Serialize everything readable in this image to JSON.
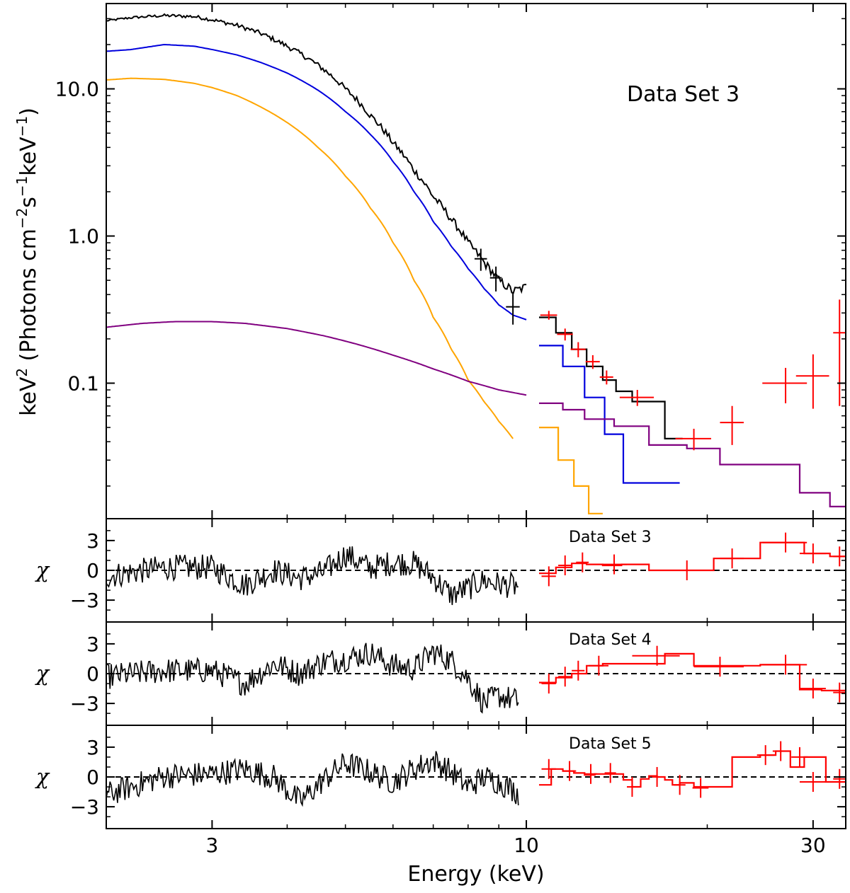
{
  "chart_data": {
    "type": "line",
    "xlabel": "Energy (keV)",
    "xscale": "log",
    "xlim": [
      2.0,
      34.0
    ],
    "xticks": [
      {
        "value": 3,
        "label": "3"
      },
      {
        "value": 10,
        "label": "10"
      },
      {
        "value": 30,
        "label": "30"
      }
    ],
    "shared_x": true,
    "panels": [
      {
        "id": "spectrum",
        "ylabel_pre": "keV",
        "ylabel_sup": "2",
        "ylabel_main": " (Photons cm",
        "ylabel_sup2": "−2",
        "ylabel_mid": "s",
        "ylabel_sup3": "−1",
        "ylabel_mid2": "keV",
        "ylabel_sup4": "−1",
        "ylabel_end": ")",
        "yscale": "log",
        "ylim": [
          0.012,
          38
        ],
        "yticks": [
          {
            "value": 0.1,
            "label": "0.1"
          },
          {
            "value": 1.0,
            "label": "1.0"
          },
          {
            "value": 10.0,
            "label": "10.0"
          }
        ],
        "annotation": "Data Set 3",
        "series": [
          {
            "color": "#000000",
            "kind": "data-steps",
            "x": [
              2.0,
              2.2,
              2.5,
              2.8,
              3.0,
              3.3,
              3.6,
              4.0,
              4.5,
              5.0,
              5.5,
              6.0,
              6.5,
              7.0,
              7.5,
              8.0,
              8.5,
              9.0,
              9.5,
              10.0
            ],
            "y": [
              29,
              30.5,
              31.5,
              31,
              29.5,
              27,
              24,
              19.5,
              14.5,
              10.0,
              6.6,
              4.3,
              2.8,
              1.85,
              1.3,
              0.9,
              0.66,
              0.5,
              0.42,
              0.45
            ]
          },
          {
            "color": "#000000",
            "kind": "model-steps",
            "x": [
              10.5,
              11.2,
              11.9,
              12.6,
              13.4,
              14.1,
              15.0,
              17.0,
              18.2
            ],
            "y": [
              0.28,
              0.22,
              0.17,
              0.13,
              0.105,
              0.088,
              0.075,
              0.042,
              0.042
            ]
          },
          {
            "color": "#0000dd",
            "kind": "model",
            "x": [
              2.0,
              2.2,
              2.5,
              2.8,
              3.0,
              3.3,
              3.6,
              4.0,
              4.5,
              5.0,
              5.5,
              6.0,
              6.5,
              7.0,
              7.5,
              8.0,
              8.5,
              9.0,
              9.5,
              10.0
            ],
            "y": [
              18,
              18.5,
              20,
              19.5,
              18.5,
              17,
              15.2,
              12.8,
              9.8,
              7.0,
              4.9,
              3.2,
              2.0,
              1.25,
              0.85,
              0.6,
              0.44,
              0.34,
              0.29,
              0.27
            ]
          },
          {
            "color": "#0000dd",
            "kind": "model-steps",
            "x": [
              10.5,
              11.5,
              12.5,
              13.5,
              14.5,
              16.0,
              18.0
            ],
            "y": [
              0.18,
              0.13,
              0.08,
              0.045,
              0.021,
              0.021,
              0.011
            ]
          },
          {
            "color": "#ffa500",
            "kind": "model",
            "x": [
              2.0,
              2.2,
              2.5,
              2.8,
              3.0,
              3.3,
              3.6,
              4.0,
              4.5,
              5.0,
              5.5,
              6.0,
              6.5,
              7.0,
              7.5,
              8.0,
              8.5,
              9.0,
              9.5
            ],
            "y": [
              11.5,
              11.8,
              11.6,
              10.9,
              10.2,
              9.0,
              7.6,
              5.9,
              4.0,
              2.55,
              1.55,
              0.9,
              0.5,
              0.28,
              0.17,
              0.105,
              0.075,
              0.055,
              0.042
            ]
          },
          {
            "color": "#ffa500",
            "kind": "model-steps",
            "x": [
              10.5,
              11.3,
              12.0,
              12.7,
              13.4
            ],
            "y": [
              0.05,
              0.03,
              0.02,
              0.013,
              0.011
            ]
          },
          {
            "color": "#800080",
            "kind": "model",
            "x": [
              2.0,
              2.3,
              2.6,
              3.0,
              3.4,
              4.0,
              4.6,
              5.2,
              6.0,
              7.0,
              8.0,
              9.0,
              10.0
            ],
            "y": [
              0.24,
              0.255,
              0.262,
              0.262,
              0.255,
              0.235,
              0.21,
              0.185,
              0.155,
              0.125,
              0.103,
              0.09,
              0.083
            ]
          },
          {
            "color": "#800080",
            "kind": "model-steps",
            "x": [
              10.5,
              11.5,
              12.5,
              14.0,
              16.0,
              18.5,
              21.0,
              24.5,
              28.5,
              32.0,
              34.0
            ],
            "y": [
              0.073,
              0.066,
              0.057,
              0.051,
              0.038,
              0.036,
              0.028,
              0.028,
              0.018,
              0.0145,
              0.0125
            ]
          }
        ],
        "points": [
          {
            "color": "#000000",
            "x": 8.4,
            "y": 0.7,
            "xerr": 0.2,
            "yerr": 0.12
          },
          {
            "color": "#000000",
            "x": 8.9,
            "y": 0.52,
            "xerr": 0.2,
            "yerr": 0.1
          },
          {
            "color": "#000000",
            "x": 9.5,
            "y": 0.33,
            "xerr": 0.25,
            "yerr": 0.08
          },
          {
            "color": "#ff0000",
            "x": 10.9,
            "y": 0.29,
            "xerr": 0.35,
            "yerr": 0.02
          },
          {
            "color": "#ff0000",
            "x": 11.6,
            "y": 0.215,
            "xerr": 0.35,
            "yerr": 0.02
          },
          {
            "color": "#ff0000",
            "x": 12.2,
            "y": 0.17,
            "xerr": 0.35,
            "yerr": 0.02
          },
          {
            "color": "#ff0000",
            "x": 12.9,
            "y": 0.14,
            "xerr": 0.35,
            "yerr": 0.015
          },
          {
            "color": "#ff0000",
            "x": 13.6,
            "y": 0.11,
            "xerr": 0.35,
            "yerr": 0.012
          },
          {
            "color": "#ff0000",
            "x": 15.3,
            "y": 0.08,
            "xerr": 1.0,
            "yerr": 0.01
          },
          {
            "color": "#ff0000",
            "x": 19.0,
            "y": 0.042,
            "xerr": 1.3,
            "yerr": 0.007
          },
          {
            "color": "#ff0000",
            "x": 22.0,
            "y": 0.054,
            "xerr": 1.0,
            "yerr": 0.016
          },
          {
            "color": "#ff0000",
            "x": 27.0,
            "y": 0.1,
            "xerr": 2.3,
            "yerr": 0.027
          },
          {
            "color": "#ff0000",
            "x": 30.0,
            "y": 0.112,
            "xerr": 1.9,
            "yerr": 0.045
          },
          {
            "color": "#ff0000",
            "x": 33.2,
            "y": 0.22,
            "xerr": 0.8,
            "yerr": 0.15
          }
        ]
      },
      {
        "id": "residuals-3",
        "ylabel": "χ",
        "ylim": [
          -5.2,
          5.2
        ],
        "yticks": [
          {
            "value": -3,
            "label": "−3"
          },
          {
            "value": 0,
            "label": "0"
          },
          {
            "value": 3,
            "label": "3"
          }
        ],
        "annotation": "Data Set 3",
        "red_steps": {
          "x": [
            10.5,
            11.2,
            11.9,
            12.6,
            13.4,
            14.4,
            16.0,
            17.0,
            20.5,
            24.5,
            29.0,
            32.0,
            34.0
          ],
          "y": [
            -0.3,
            0.3,
            0.7,
            0.6,
            0.5,
            0.6,
            0.0,
            0.0,
            1.2,
            2.8,
            1.7,
            1.4,
            1.4
          ]
        },
        "points": [
          {
            "x": 10.9,
            "y": -0.6,
            "xerr": 0.3,
            "yerr": 1.0
          },
          {
            "x": 11.6,
            "y": 0.5,
            "xerr": 0.3,
            "yerr": 1.0
          },
          {
            "x": 12.4,
            "y": 0.8,
            "xerr": 0.3,
            "yerr": 1.0
          },
          {
            "x": 14.0,
            "y": 0.6,
            "xerr": 0.7,
            "yerr": 1.0
          },
          {
            "x": 18.5,
            "y": 0.0,
            "xerr": 1.3,
            "yerr": 1.0
          },
          {
            "x": 22.0,
            "y": 1.2,
            "xerr": 1.0,
            "yerr": 1.0
          },
          {
            "x": 27.0,
            "y": 2.8,
            "xerr": 2.3,
            "yerr": 1.0
          },
          {
            "x": 30.0,
            "y": 1.7,
            "xerr": 1.5,
            "yerr": 1.0
          },
          {
            "x": 33.2,
            "y": 1.4,
            "xerr": 0.8,
            "yerr": 1.0
          }
        ],
        "black_trend": {
          "x": [
            2.0,
            2.5,
            3.0,
            3.4,
            3.8,
            4.2,
            4.6,
            5.0,
            5.5,
            6.0,
            6.5,
            7.0,
            7.5,
            8.0,
            8.5,
            9.0,
            9.7
          ],
          "y": [
            -0.6,
            0.3,
            0.3,
            -1.5,
            0.0,
            -0.8,
            -0.2,
            1.6,
            0.2,
            0.8,
            0.7,
            -0.7,
            -2.5,
            -1.8,
            -1.0,
            -1.4,
            -1.6
          ]
        }
      },
      {
        "id": "residuals-4",
        "ylabel": "χ",
        "ylim": [
          -5.2,
          5.2
        ],
        "yticks": [
          {
            "value": -3,
            "label": "−3"
          },
          {
            "value": 0,
            "label": "0"
          },
          {
            "value": 3,
            "label": "3"
          }
        ],
        "annotation": "Data Set 4",
        "red_steps": {
          "x": [
            10.5,
            11.2,
            11.9,
            12.6,
            13.4,
            15.0,
            17.0,
            19.0,
            24.5,
            28.5,
            31.0,
            34.0
          ],
          "y": [
            -0.9,
            -0.4,
            0.0,
            0.8,
            1.0,
            1.0,
            2.0,
            0.8,
            0.9,
            -1.6,
            -1.7,
            -1.7
          ]
        },
        "points": [
          {
            "x": 10.9,
            "y": -1.0,
            "xerr": 0.3,
            "yerr": 1.0
          },
          {
            "x": 11.6,
            "y": -0.3,
            "xerr": 0.3,
            "yerr": 1.0
          },
          {
            "x": 12.2,
            "y": 0.3,
            "xerr": 0.3,
            "yerr": 1.0
          },
          {
            "x": 13.2,
            "y": 0.8,
            "xerr": 0.5,
            "yerr": 1.0
          },
          {
            "x": 16.5,
            "y": 1.8,
            "xerr": 1.5,
            "yerr": 1.0
          },
          {
            "x": 21.0,
            "y": 0.7,
            "xerr": 2.0,
            "yerr": 1.0
          },
          {
            "x": 27.0,
            "y": 0.9,
            "xerr": 2.3,
            "yerr": 1.0
          },
          {
            "x": 30.0,
            "y": -1.5,
            "xerr": 1.5,
            "yerr": 1.0
          },
          {
            "x": 33.2,
            "y": -1.9,
            "xerr": 0.8,
            "yerr": 1.0
          }
        ],
        "black_trend": {
          "x": [
            2.0,
            2.5,
            3.0,
            3.4,
            3.8,
            4.2,
            4.6,
            5.0,
            5.5,
            6.0,
            6.5,
            7.0,
            7.5,
            8.0,
            8.5,
            9.0,
            9.7
          ],
          "y": [
            -0.3,
            0.3,
            0.3,
            -1.0,
            1.0,
            0.0,
            1.2,
            1.5,
            2.1,
            0.8,
            0.5,
            2.2,
            1.3,
            -0.5,
            -3.0,
            -2.2,
            -2.8
          ]
        }
      },
      {
        "id": "residuals-5",
        "ylabel": "χ",
        "ylim": [
          -5.2,
          5.2
        ],
        "yticks": [
          {
            "value": -3,
            "label": "−3"
          },
          {
            "value": 0,
            "label": "0"
          },
          {
            "value": 3,
            "label": "3"
          }
        ],
        "annotation": "Data Set 5",
        "red_steps": {
          "x": [
            10.5,
            11.0,
            11.5,
            12.0,
            12.5,
            13.0,
            13.5,
            14.0,
            14.5,
            15.0,
            15.5,
            16.0,
            16.5,
            17.0,
            17.5,
            18.0,
            19.0,
            20.0,
            22.0,
            24.5,
            26.0,
            27.5,
            29.0,
            31.5,
            34.0
          ],
          "y": [
            -0.8,
            0.8,
            0.6,
            0.4,
            0.2,
            0.3,
            0.3,
            0.3,
            -0.3,
            -1.0,
            -0.2,
            0.1,
            0.0,
            -0.3,
            -0.8,
            -0.6,
            -1.0,
            -1.0,
            2.0,
            2.2,
            2.6,
            1.0,
            2.0,
            -0.5,
            -0.4
          ]
        },
        "points": [
          {
            "x": 10.9,
            "y": 0.8,
            "xerr": 0.3,
            "yerr": 1.0
          },
          {
            "x": 11.8,
            "y": 0.6,
            "xerr": 0.3,
            "yerr": 1.0
          },
          {
            "x": 12.8,
            "y": 0.3,
            "xerr": 0.3,
            "yerr": 1.0
          },
          {
            "x": 13.8,
            "y": 0.4,
            "xerr": 0.3,
            "yerr": 1.0
          },
          {
            "x": 15.0,
            "y": -1.0,
            "xerr": 0.3,
            "yerr": 1.0
          },
          {
            "x": 16.5,
            "y": 0.0,
            "xerr": 0.3,
            "yerr": 1.0
          },
          {
            "x": 18.0,
            "y": -0.8,
            "xerr": 0.4,
            "yerr": 1.0
          },
          {
            "x": 19.5,
            "y": -1.1,
            "xerr": 0.6,
            "yerr": 1.0
          },
          {
            "x": 25.0,
            "y": 2.2,
            "xerr": 0.8,
            "yerr": 1.0
          },
          {
            "x": 26.5,
            "y": 2.6,
            "xerr": 0.8,
            "yerr": 1.0
          },
          {
            "x": 28.5,
            "y": 2.0,
            "xerr": 0.9,
            "yerr": 1.0
          },
          {
            "x": 30.0,
            "y": -0.5,
            "xerr": 1.5,
            "yerr": 1.0
          },
          {
            "x": 33.2,
            "y": -0.2,
            "xerr": 0.8,
            "yerr": 1.0
          }
        ],
        "black_trend": {
          "x": [
            2.0,
            2.5,
            3.0,
            3.4,
            3.8,
            4.2,
            4.6,
            5.0,
            5.5,
            6.0,
            6.5,
            7.0,
            7.5,
            8.0,
            8.5,
            9.0,
            9.7
          ],
          "y": [
            -1.8,
            0.1,
            0.3,
            0.8,
            0.0,
            -2.5,
            -0.3,
            1.4,
            0.5,
            -0.5,
            0.8,
            1.7,
            0.5,
            -1.0,
            0.0,
            -0.5,
            -1.6
          ]
        }
      }
    ]
  }
}
